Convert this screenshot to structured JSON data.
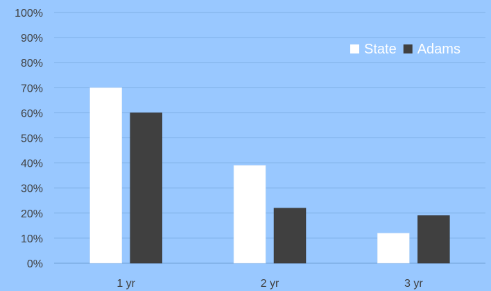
{
  "chart_data": {
    "type": "bar",
    "title": "",
    "xlabel": "",
    "ylabel": "",
    "categories": [
      "1 yr",
      "2 yr",
      "3 yr"
    ],
    "series": [
      {
        "name": "State",
        "values": [
          70,
          39,
          12
        ]
      },
      {
        "name": "Adams",
        "values": [
          60,
          22,
          19
        ]
      }
    ],
    "ylim": [
      0,
      100
    ],
    "y_ticks": [
      0,
      10,
      20,
      30,
      40,
      50,
      60,
      70,
      80,
      90,
      100
    ],
    "y_tick_format": "percent",
    "grid": true,
    "legend_position": "top-right",
    "colors": {
      "background": "#99c8ff",
      "State": "#ffffff",
      "Adams": "#404040",
      "gridline": "#7fb0e6",
      "text": "#404040",
      "legend_text": "#ffffff"
    }
  }
}
